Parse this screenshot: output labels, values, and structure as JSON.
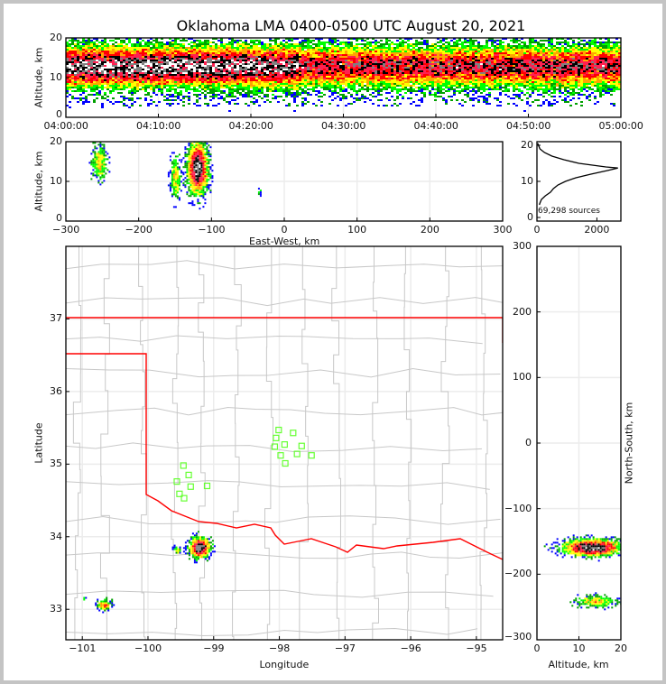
{
  "title": "Oklahoma LMA 0400-0500 UTC August 20, 2021",
  "chart_data": [
    {
      "id": "time_height",
      "type": "heatmap",
      "xlabel": "",
      "ylabel": "Altitude, km",
      "xlim_minutes": [
        0,
        60
      ],
      "ylim": [
        0,
        20
      ],
      "xticks": [
        "04:00:00",
        "04:10:00",
        "04:20:00",
        "04:30:00",
        "04:40:00",
        "04:50:00",
        "05:00:00"
      ],
      "yticks": [
        "0",
        "10",
        "20"
      ],
      "density": {
        "center_alt_km": 13,
        "spread_km": 3.2,
        "strongest_minutes": [
          0,
          25
        ]
      }
    },
    {
      "id": "ew_height",
      "type": "heatmap",
      "xlabel": "East-West, km",
      "ylabel": "Altitude, km",
      "xlim": [
        -300,
        300
      ],
      "ylim": [
        0,
        20
      ],
      "xticks": [
        "−300",
        "−200",
        "−100",
        "0",
        "100",
        "200",
        "300"
      ],
      "yticks": [
        "0",
        "10",
        "20"
      ],
      "clusters": [
        {
          "x": -255,
          "alt": 15,
          "sx": 7,
          "salt": 3,
          "amp": 0.45
        },
        {
          "x": -150,
          "alt": 11,
          "sx": 5,
          "salt": 3.5,
          "amp": 0.45
        },
        {
          "x": -120,
          "alt": 13.5,
          "sx": 9,
          "salt": 4.2,
          "amp": 1.0
        },
        {
          "x": -35,
          "alt": 7.5,
          "sx": 2,
          "salt": 0.6,
          "amp": 0.3
        }
      ]
    },
    {
      "id": "altitude_histogram",
      "type": "line",
      "xlim": [
        0,
        2800
      ],
      "ylim": [
        -1,
        21
      ],
      "xticks": [
        "0",
        "2000"
      ],
      "yticks": [
        "0",
        "10",
        "20"
      ],
      "annotation": "69,298 sources",
      "alt_km": [
        3.5,
        4,
        5,
        6,
        7,
        8,
        9,
        10,
        11,
        12,
        13,
        13.7,
        14,
        15,
        16,
        17,
        18,
        19,
        20,
        20.5
      ],
      "counts": [
        80,
        100,
        150,
        280,
        450,
        550,
        700,
        950,
        1300,
        1800,
        2350,
        2700,
        2300,
        1400,
        900,
        500,
        250,
        100,
        50,
        30
      ]
    },
    {
      "id": "plan_view",
      "type": "heatmap",
      "xlabel": "Longitude",
      "ylabel": "Latitude",
      "xlim": [
        -101.25,
        -94.6
      ],
      "ylim": [
        32.58,
        38.0
      ],
      "xticks": [
        "−101",
        "−100",
        "−99",
        "−98",
        "−97",
        "−96",
        "−95"
      ],
      "yticks": [
        "33",
        "34",
        "35",
        "36",
        "37"
      ],
      "clusters": [
        {
          "lon": -99.22,
          "lat": 33.86,
          "slon": 0.1,
          "slat": 0.09,
          "amp": 1.0
        },
        {
          "lon": -99.57,
          "lat": 33.82,
          "slon": 0.04,
          "slat": 0.04,
          "amp": 0.4
        },
        {
          "lon": -100.68,
          "lat": 33.07,
          "slon": 0.07,
          "slat": 0.05,
          "amp": 0.55
        },
        {
          "lon": -100.98,
          "lat": 33.16,
          "slon": 0.02,
          "slat": 0.02,
          "amp": 0.3
        }
      ],
      "stations": [
        [
          -98.01,
          35.47
        ],
        [
          -97.79,
          35.43
        ],
        [
          -98.05,
          35.36
        ],
        [
          -97.92,
          35.27
        ],
        [
          -98.07,
          35.24
        ],
        [
          -97.66,
          35.25
        ],
        [
          -97.73,
          35.14
        ],
        [
          -97.51,
          35.12
        ],
        [
          -97.98,
          35.12
        ],
        [
          -97.91,
          35.01
        ],
        [
          -99.46,
          34.98
        ],
        [
          -99.38,
          34.85
        ],
        [
          -99.56,
          34.76
        ],
        [
          -99.35,
          34.69
        ],
        [
          -99.1,
          34.7
        ],
        [
          -99.52,
          34.59
        ],
        [
          -99.45,
          34.53
        ]
      ]
    },
    {
      "id": "height_ns",
      "type": "heatmap",
      "xlabel": "Altitude, km",
      "ylabel": "North-South, km",
      "xlim": [
        0,
        20
      ],
      "ylim": [
        -300,
        300
      ],
      "xticks": [
        "0",
        "10",
        "20"
      ],
      "yticks": [
        "−300",
        "−200",
        "−100",
        "0",
        "100",
        "200",
        "300"
      ],
      "clusters": [
        {
          "alt": 13,
          "y": -158,
          "salt": 4.5,
          "sy": 8,
          "amp": 1.0
        },
        {
          "alt": 14,
          "y": -240,
          "salt": 3.5,
          "sy": 6,
          "amp": 0.45
        }
      ]
    }
  ],
  "colors": {
    "boundary": "#ff0000",
    "county": "#c8c8c8",
    "station": "#66ff33",
    "palette": [
      "#0000ff",
      "#00a000",
      "#00ff00",
      "#ffff00",
      "#ffa500",
      "#ff0000",
      "#ff2050",
      "#000000",
      "#808080",
      "#ffffff"
    ]
  }
}
